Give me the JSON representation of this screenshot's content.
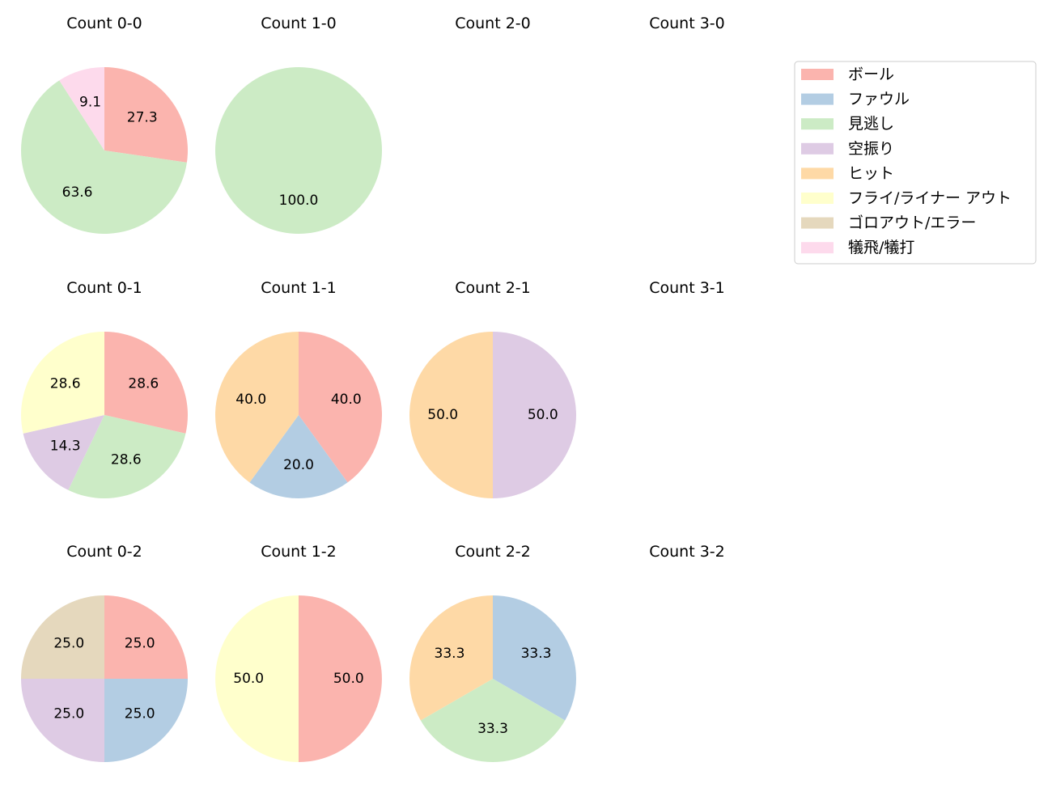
{
  "chart_data": [
    {
      "type": "pie",
      "title": "Count 0-0",
      "slices": [
        {
          "category": "ボール",
          "value": 27.3,
          "label": "27.3"
        },
        {
          "category": "見逃し",
          "value": 63.6,
          "label": "63.6"
        },
        {
          "category": "犠飛/犠打",
          "value": 9.1,
          "label": "9.1"
        }
      ]
    },
    {
      "type": "pie",
      "title": "Count 1-0",
      "slices": [
        {
          "category": "見逃し",
          "value": 100.0,
          "label": "100.0"
        }
      ]
    },
    {
      "type": "pie",
      "title": "Count 2-0",
      "slices": []
    },
    {
      "type": "pie",
      "title": "Count 3-0",
      "slices": []
    },
    {
      "type": "pie",
      "title": "Count 0-1",
      "slices": [
        {
          "category": "ボール",
          "value": 28.6,
          "label": "28.6"
        },
        {
          "category": "見逃し",
          "value": 28.6,
          "label": "28.6"
        },
        {
          "category": "空振り",
          "value": 14.3,
          "label": "14.3"
        },
        {
          "category": "フライ/ライナー アウト",
          "value": 28.6,
          "label": "28.6"
        }
      ]
    },
    {
      "type": "pie",
      "title": "Count 1-1",
      "slices": [
        {
          "category": "ボール",
          "value": 40.0,
          "label": "40.0"
        },
        {
          "category": "ファウル",
          "value": 20.0,
          "label": "20.0"
        },
        {
          "category": "ヒット",
          "value": 40.0,
          "label": "40.0"
        }
      ]
    },
    {
      "type": "pie",
      "title": "Count 2-1",
      "slices": [
        {
          "category": "空振り",
          "value": 50.0,
          "label": "50.0"
        },
        {
          "category": "ヒット",
          "value": 50.0,
          "label": "50.0"
        }
      ]
    },
    {
      "type": "pie",
      "title": "Count 3-1",
      "slices": []
    },
    {
      "type": "pie",
      "title": "Count 0-2",
      "slices": [
        {
          "category": "ボール",
          "value": 25.0,
          "label": "25.0"
        },
        {
          "category": "ファウル",
          "value": 25.0,
          "label": "25.0"
        },
        {
          "category": "空振り",
          "value": 25.0,
          "label": "25.0"
        },
        {
          "category": "ゴロアウト/エラー",
          "value": 25.0,
          "label": "25.0"
        }
      ]
    },
    {
      "type": "pie",
      "title": "Count 1-2",
      "slices": [
        {
          "category": "ボール",
          "value": 50.0,
          "label": "50.0"
        },
        {
          "category": "フライ/ライナー アウト",
          "value": 50.0,
          "label": "50.0"
        }
      ]
    },
    {
      "type": "pie",
      "title": "Count 2-2",
      "slices": [
        {
          "category": "ファウル",
          "value": 33.3,
          "label": "33.3"
        },
        {
          "category": "見逃し",
          "value": 33.3,
          "label": "33.3"
        },
        {
          "category": "ヒット",
          "value": 33.3,
          "label": "33.3"
        }
      ]
    },
    {
      "type": "pie",
      "title": "Count 3-2",
      "slices": []
    }
  ],
  "legend": {
    "placement": "top-right",
    "items": [
      {
        "label": "ボール",
        "color": "#fbb4ae"
      },
      {
        "label": "ファウル",
        "color": "#b3cde3"
      },
      {
        "label": "見逃し",
        "color": "#ccebc5"
      },
      {
        "label": "空振り",
        "color": "#decbe4"
      },
      {
        "label": "ヒット",
        "color": "#fed9a6"
      },
      {
        "label": "フライ/ライナー アウト",
        "color": "#ffffcc"
      },
      {
        "label": "ゴロアウト/エラー",
        "color": "#e5d8bd"
      },
      {
        "label": "犠飛/犠打",
        "color": "#fddaec"
      }
    ]
  }
}
